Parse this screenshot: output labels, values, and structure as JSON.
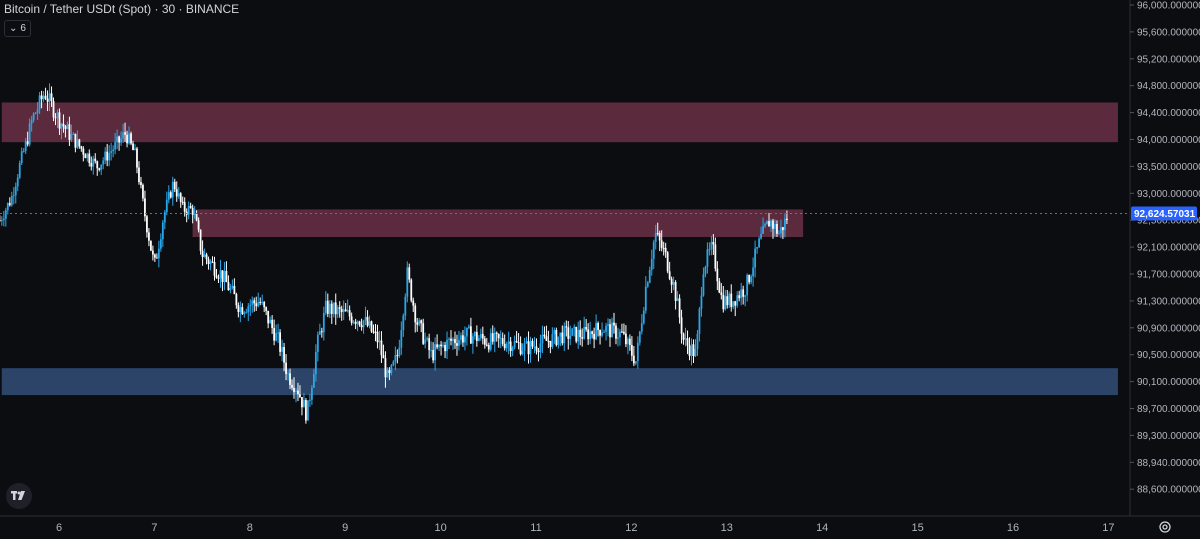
{
  "header": {
    "title": "Bitcoin / Tether USDt (Spot) · 30 · BINANCE",
    "interval_badge": "6"
  },
  "colors": {
    "background": "#0c0d11",
    "bull_candle": "#2aa7e8",
    "bear_candle": "#ffffff",
    "supply_zone": "#5b2b3d",
    "demand_zone": "#2b4468",
    "price_line": "#2d7fc9",
    "price_label_bg": "#2962ff",
    "axis_text": "#b2b5be"
  },
  "icons": [
    "tradingview-logo-icon",
    "chevron-down-icon",
    "settings-icon"
  ],
  "chart_data": {
    "type": "candlestick",
    "symbol": "BTCUSDT",
    "timeframe": "30",
    "ylim": [
      88600,
      96000
    ],
    "y_ticks": [
      "96,000.000000",
      "95,600.000000",
      "95,200.000000",
      "94,800.000000",
      "94,400.000000",
      "94,000.000000",
      "93,500.000000",
      "93,000.000000",
      "92,500.000000",
      "92,100.000000",
      "91,700.000000",
      "91,300.000000",
      "90,900.000000",
      "90,500.000000",
      "90,100.000000",
      "89,700.000000",
      "89,300.000000",
      "88,940.000000",
      "88,600.000000"
    ],
    "x_ticks": [
      "6",
      "7",
      "8",
      "9",
      "10",
      "11",
      "12",
      "13",
      "14",
      "15",
      "16",
      "17"
    ],
    "last_price": "92,624.57031",
    "zones": [
      {
        "kind": "supply",
        "from": 94550,
        "to": 93950,
        "x_start": 5.4,
        "x_end": 17.1
      },
      {
        "kind": "supply",
        "from": 92700,
        "to": 92250,
        "x_start": 7.4,
        "x_end": 13.8
      },
      {
        "kind": "demand",
        "from": 90300,
        "to": 89900,
        "x_start": 5.4,
        "x_end": 17.1
      }
    ],
    "price_path": [
      [
        5.38,
        92500
      ],
      [
        5.5,
        92900
      ],
      [
        5.6,
        93600
      ],
      [
        5.72,
        94300
      ],
      [
        5.85,
        94700
      ],
      [
        6.0,
        94300
      ],
      [
        6.2,
        93900
      ],
      [
        6.4,
        93500
      ],
      [
        6.55,
        93800
      ],
      [
        6.7,
        94100
      ],
      [
        6.8,
        93700
      ],
      [
        6.9,
        92600
      ],
      [
        7.0,
        91800
      ],
      [
        7.1,
        92600
      ],
      [
        7.2,
        93200
      ],
      [
        7.3,
        92700
      ],
      [
        7.4,
        92700
      ],
      [
        7.5,
        92000
      ],
      [
        7.7,
        91700
      ],
      [
        7.9,
        91200
      ],
      [
        8.1,
        91300
      ],
      [
        8.3,
        90700
      ],
      [
        8.4,
        90200
      ],
      [
        8.5,
        90000
      ],
      [
        8.6,
        89600
      ],
      [
        8.7,
        90600
      ],
      [
        8.8,
        91200
      ],
      [
        9.0,
        91100
      ],
      [
        9.2,
        91000
      ],
      [
        9.35,
        90700
      ],
      [
        9.45,
        90100
      ],
      [
        9.55,
        90500
      ],
      [
        9.65,
        91700
      ],
      [
        9.75,
        91000
      ],
      [
        9.9,
        90500
      ],
      [
        10.1,
        90700
      ],
      [
        10.3,
        90800
      ],
      [
        10.5,
        90700
      ],
      [
        10.7,
        90700
      ],
      [
        10.9,
        90600
      ],
      [
        11.1,
        90700
      ],
      [
        11.3,
        90800
      ],
      [
        11.5,
        90800
      ],
      [
        11.7,
        90900
      ],
      [
        11.9,
        90800
      ],
      [
        12.05,
        90400
      ],
      [
        12.15,
        91500
      ],
      [
        12.25,
        92300
      ],
      [
        12.35,
        92000
      ],
      [
        12.45,
        91500
      ],
      [
        12.55,
        90700
      ],
      [
        12.68,
        90500
      ],
      [
        12.75,
        91800
      ],
      [
        12.85,
        92100
      ],
      [
        12.95,
        91300
      ],
      [
        13.05,
        91300
      ],
      [
        13.2,
        91500
      ],
      [
        13.35,
        92200
      ],
      [
        13.45,
        92500
      ],
      [
        13.55,
        92300
      ],
      [
        13.65,
        92600
      ]
    ]
  }
}
